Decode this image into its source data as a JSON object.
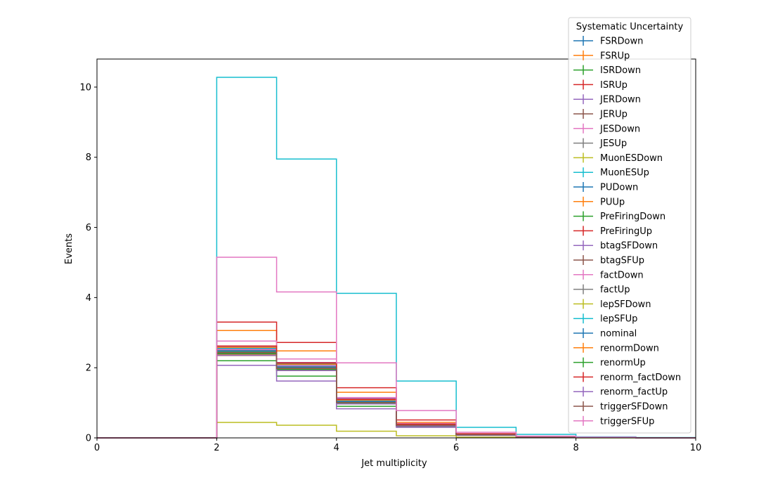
{
  "chart_data": {
    "type": "line",
    "style": "step-histogram",
    "xlabel": "Jet multiplicity",
    "ylabel": "Events",
    "xlim": [
      0,
      10
    ],
    "ylim": [
      0,
      10.8
    ],
    "x_ticks": [
      0,
      2,
      4,
      6,
      8,
      10
    ],
    "y_ticks": [
      0,
      2,
      4,
      6,
      8,
      10
    ],
    "bin_edges": [
      0,
      1,
      2,
      3,
      4,
      5,
      6,
      7,
      8,
      9,
      10
    ],
    "grid": false,
    "legend": {
      "title": "Systematic Uncertainty",
      "placement": "top-right"
    },
    "series": [
      {
        "name": "FSRDown",
        "color": "#1f77b4",
        "values": [
          0,
          0,
          2.58,
          2.12,
          1.08,
          0.36,
          0.09,
          0.03,
          0.01,
          0
        ]
      },
      {
        "name": "FSRUp",
        "color": "#ff7f0e",
        "values": [
          0,
          0,
          3.06,
          2.48,
          1.3,
          0.44,
          0.11,
          0.03,
          0.01,
          0
        ]
      },
      {
        "name": "ISRDown",
        "color": "#2ca02c",
        "values": [
          0,
          0,
          2.2,
          1.76,
          0.9,
          0.32,
          0.08,
          0.02,
          0.01,
          0
        ]
      },
      {
        "name": "ISRUp",
        "color": "#d62728",
        "values": [
          0,
          0,
          3.3,
          2.72,
          1.43,
          0.51,
          0.12,
          0.03,
          0.01,
          0
        ]
      },
      {
        "name": "JERDown",
        "color": "#9467bd",
        "values": [
          0,
          0,
          2.07,
          1.62,
          0.83,
          0.3,
          0.07,
          0.02,
          0.01,
          0
        ]
      },
      {
        "name": "JERUp",
        "color": "#8c564b",
        "values": [
          0,
          0,
          2.42,
          1.95,
          1.0,
          0.35,
          0.09,
          0.02,
          0.01,
          0
        ]
      },
      {
        "name": "JESDown",
        "color": "#e377c2",
        "values": [
          0,
          0,
          2.76,
          2.25,
          1.15,
          0.41,
          0.1,
          0.03,
          0.01,
          0
        ]
      },
      {
        "name": "JESUp",
        "color": "#7f7f7f",
        "values": [
          0,
          0,
          2.5,
          2.05,
          1.05,
          0.37,
          0.09,
          0.02,
          0.01,
          0
        ]
      },
      {
        "name": "MuonESDown",
        "color": "#bcbd22",
        "values": [
          0,
          0,
          0.44,
          0.36,
          0.19,
          0.06,
          0.02,
          0.01,
          0,
          0
        ]
      },
      {
        "name": "MuonESUp",
        "color": "#17becf",
        "values": [
          0,
          0,
          10.28,
          7.95,
          4.12,
          1.62,
          0.3,
          0.1,
          0.03,
          0.01
        ]
      },
      {
        "name": "PUDown",
        "color": "#1f77b4",
        "values": [
          0,
          0,
          2.55,
          2.1,
          1.1,
          0.38,
          0.09,
          0.02,
          0.01,
          0
        ]
      },
      {
        "name": "PUUp",
        "color": "#ff7f0e",
        "values": [
          0,
          0,
          2.38,
          1.93,
          0.98,
          0.35,
          0.08,
          0.02,
          0.01,
          0
        ]
      },
      {
        "name": "PreFiringDown",
        "color": "#2ca02c",
        "values": [
          0,
          0,
          2.45,
          2.0,
          1.02,
          0.36,
          0.09,
          0.02,
          0.01,
          0
        ]
      },
      {
        "name": "PreFiringUp",
        "color": "#d62728",
        "values": [
          0,
          0,
          2.4,
          1.97,
          1.0,
          0.35,
          0.09,
          0.02,
          0.01,
          0
        ]
      },
      {
        "name": "btagSFDown",
        "color": "#9467bd",
        "values": [
          0,
          0,
          2.6,
          2.15,
          1.12,
          0.39,
          0.1,
          0.03,
          0.01,
          0
        ]
      },
      {
        "name": "btagSFUp",
        "color": "#8c564b",
        "values": [
          0,
          0,
          2.35,
          1.92,
          0.97,
          0.34,
          0.08,
          0.02,
          0.01,
          0
        ]
      },
      {
        "name": "factDown",
        "color": "#e377c2",
        "values": [
          0,
          0,
          2.52,
          2.06,
          1.06,
          0.37,
          0.09,
          0.02,
          0.01,
          0
        ]
      },
      {
        "name": "factUp",
        "color": "#7f7f7f",
        "values": [
          0,
          0,
          2.44,
          1.99,
          1.01,
          0.36,
          0.09,
          0.02,
          0.01,
          0
        ]
      },
      {
        "name": "lepSFDown",
        "color": "#bcbd22",
        "values": [
          0,
          0,
          2.4,
          1.96,
          0.99,
          0.35,
          0.08,
          0.02,
          0.01,
          0
        ]
      },
      {
        "name": "lepSFUp",
        "color": "#17becf",
        "values": [
          0,
          0,
          2.56,
          2.09,
          1.07,
          0.38,
          0.09,
          0.03,
          0.01,
          0
        ]
      },
      {
        "name": "nominal",
        "color": "#1f77b4",
        "values": [
          0,
          0,
          2.48,
          2.02,
          1.04,
          0.36,
          0.09,
          0.02,
          0.01,
          0
        ]
      },
      {
        "name": "renormDown",
        "color": "#ff7f0e",
        "values": [
          0,
          0,
          2.58,
          2.1,
          1.08,
          0.38,
          0.09,
          0.02,
          0.01,
          0
        ]
      },
      {
        "name": "renormUp",
        "color": "#2ca02c",
        "values": [
          0,
          0,
          2.4,
          1.95,
          0.98,
          0.35,
          0.08,
          0.02,
          0.01,
          0
        ]
      },
      {
        "name": "renorm_factDown",
        "color": "#d62728",
        "values": [
          0,
          0,
          2.62,
          2.14,
          1.1,
          0.39,
          0.1,
          0.03,
          0.01,
          0
        ]
      },
      {
        "name": "renorm_factUp",
        "color": "#9467bd",
        "values": [
          0,
          0,
          2.36,
          1.92,
          0.97,
          0.34,
          0.08,
          0.02,
          0.01,
          0
        ]
      },
      {
        "name": "triggerSFDown",
        "color": "#8c564b",
        "values": [
          0,
          0,
          2.43,
          1.98,
          1.01,
          0.36,
          0.09,
          0.02,
          0.01,
          0
        ]
      },
      {
        "name": "triggerSFUp",
        "color": "#e377c2",
        "values": [
          0,
          0,
          5.15,
          4.16,
          2.14,
          0.78,
          0.16,
          0.05,
          0.02,
          0
        ]
      }
    ]
  }
}
